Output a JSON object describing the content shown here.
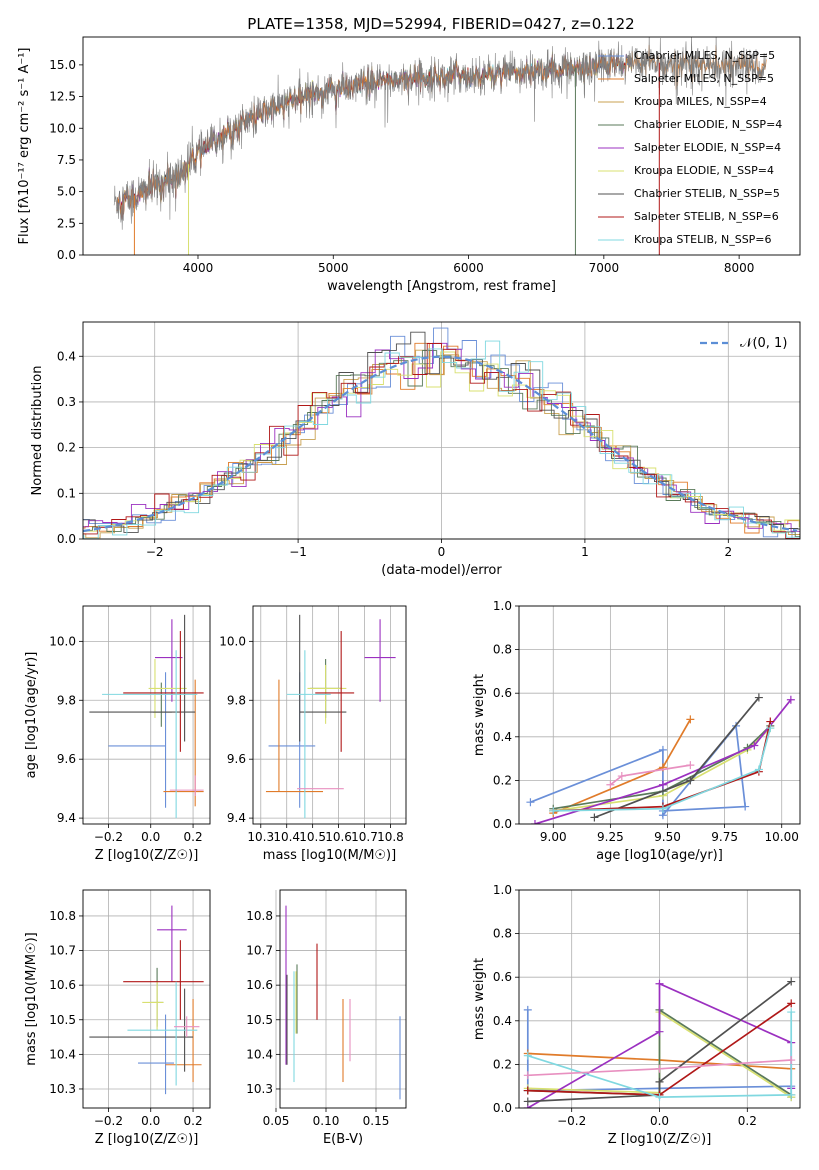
{
  "page_title": "PLATE=1358, MJD=52994, FIBERID=0427, z=0.122",
  "model_colors": [
    "#6a8fd8",
    "#e07b2a",
    "#c8a050",
    "#5a7a5a",
    "#9b30c0",
    "#d8e070",
    "#505050",
    "#b01818",
    "#80d8e0"
  ],
  "chart_data": [
    {
      "id": "spectrum",
      "type": "line",
      "xlabel": "wavelength [Angstrom, rest frame]",
      "ylabel": "Flux [fλ10⁻¹⁷ erg cm⁻² s⁻¹ A⁻¹]",
      "xlim": [
        3150,
        8450
      ],
      "ylim": [
        0,
        17.2
      ],
      "xticks": [
        4000,
        5000,
        6000,
        7000,
        8000
      ],
      "yticks": [
        0.0,
        2.5,
        5.0,
        7.5,
        10.0,
        12.5,
        15.0
      ],
      "ytick_labels": [
        "0.0",
        "2.5",
        "5.0",
        "7.5",
        "10.0",
        "12.5",
        "15.0"
      ],
      "grid": false,
      "legend_position": "right",
      "legend": [
        "Chabrier MILES, N_SSP=5",
        "Salpeter MILES, N_SSP=5",
        "Kroupa MILES, N_SSP=4",
        "Chabrier ELODIE, N_SSP=4",
        "Salpeter ELODIE, N_SSP=4",
        "Kroupa ELODIE, N_SSP=4",
        "Chabrier STELIB, N_SSP=5",
        "Salpeter STELIB, N_SSP=6",
        "Kroupa STELIB, N_SSP=6"
      ],
      "legend_colors": [
        "#6a8fd8",
        "#e07b2a",
        "#c8a050",
        "#5a7a5a",
        "#9b30c0",
        "#d8e070",
        "#505050",
        "#b01818",
        "#80d8e0"
      ],
      "continuum_x": [
        3380,
        3500,
        3700,
        3850,
        4000,
        4200,
        4400,
        4600,
        4800,
        5000,
        5200,
        5500,
        5800,
        6000,
        6300,
        6600,
        6900,
        7200,
        7500,
        7800,
        8000,
        8200
      ],
      "continuum_y": [
        4.2,
        4.5,
        5.5,
        6.2,
        8.0,
        9.6,
        10.8,
        11.8,
        12.6,
        13.1,
        13.4,
        13.9,
        14.1,
        14.2,
        14.4,
        14.6,
        14.9,
        15.1,
        15.2,
        15.0,
        14.9,
        14.8
      ],
      "fit_range": [
        3400,
        7200
      ]
    },
    {
      "id": "residuals",
      "type": "line",
      "xlabel": "(data-model)/error",
      "ylabel": "Normed distribution",
      "xlim": [
        -2.5,
        2.5
      ],
      "ylim": [
        0,
        0.475
      ],
      "xticks": [
        -2,
        -1,
        0,
        1,
        2
      ],
      "xtick_labels": [
        "−2",
        "−1",
        "0",
        "1",
        "2"
      ],
      "yticks": [
        0.0,
        0.1,
        0.2,
        0.3,
        0.4
      ],
      "ytick_labels": [
        "0.0",
        "0.1",
        "0.2",
        "0.3",
        "0.4"
      ],
      "grid": true,
      "legend": [
        "𝒩(0, 1)"
      ],
      "legend_position": "top-right",
      "gaussian": {
        "mean": 0,
        "sigma": 1
      }
    },
    {
      "id": "age-vs-Z",
      "type": "scatter",
      "xlabel": "Z [log10(Z/Z☉)]",
      "ylabel": "age  [log10(age/yr)]",
      "xlim": [
        -0.32,
        0.28
      ],
      "ylim": [
        9.38,
        10.12
      ],
      "xticks": [
        -0.2,
        0.0,
        0.2
      ],
      "xtick_labels": [
        "−0.2",
        "0.0",
        "0.2"
      ],
      "yticks": [
        9.4,
        9.6,
        9.8,
        10.0
      ],
      "ytick_labels": [
        "9.4",
        "9.6",
        "9.8",
        "10.0"
      ],
      "grid": true,
      "points": [
        {
          "x": 0.07,
          "y": 9.645,
          "xerr": [
            0.27,
            0.0
          ],
          "yerr": [
            0.21,
            0.25
          ],
          "c": 0
        },
        {
          "x": 0.21,
          "y": 9.49,
          "xerr": [
            0.15,
            0.04
          ],
          "yerr": [
            0.05,
            0.38
          ],
          "c": 1
        },
        {
          "x": 0.05,
          "y": 9.76,
          "xerr": [
            0.04,
            0.05
          ],
          "yerr": [
            0.05,
            0.1
          ],
          "c": 3
        },
        {
          "x": 0.1,
          "y": 9.945,
          "xerr": [
            0.08,
            0.05
          ],
          "yerr": [
            0.15,
            0.13
          ],
          "c": 4
        },
        {
          "x": 0.02,
          "y": 9.84,
          "xerr": [
            0.03,
            0.15
          ],
          "yerr": [
            0.1,
            0.1
          ],
          "c": 5
        },
        {
          "x": 0.16,
          "y": 9.76,
          "xerr": [
            0.45,
            0.05
          ],
          "yerr": [
            0.1,
            0.33
          ],
          "c": 6
        },
        {
          "x": 0.14,
          "y": 9.825,
          "xerr": [
            0.27,
            0.11
          ],
          "yerr": [
            0.2,
            0.21
          ],
          "c": 7
        },
        {
          "x": 0.12,
          "y": 9.82,
          "xerr": [
            0.35,
            0.1
          ],
          "yerr": [
            0.42,
            0.15
          ],
          "c": 8
        },
        {
          "x": 0.21,
          "y": 9.495,
          "xerr": [
            0.12,
            0.04
          ],
          "yerr": [
            0.02,
            0.05
          ],
          "c": 2
        }
      ]
    },
    {
      "id": "age-vs-mass",
      "type": "scatter",
      "xlabel": "mass [log10(M/M☉)]",
      "ylabel": "",
      "xlim": [
        10.27,
        10.86
      ],
      "ylim": [
        9.38,
        10.12
      ],
      "xticks": [
        10.3,
        10.4,
        10.5,
        10.6,
        10.7,
        10.8
      ],
      "xtick_labels": [
        "10.3",
        "10.4",
        "10.5",
        "10.6",
        "10.7",
        "10.8"
      ],
      "yticks": [
        9.4,
        9.6,
        9.8,
        10.0
      ],
      "ytick_labels": [
        "9.4",
        "9.6",
        "9.8",
        "10.0"
      ],
      "grid": true,
      "points": [
        {
          "x": 10.45,
          "y": 9.645,
          "xerr": [
            0.12,
            0.06
          ],
          "yerr": [
            0.21,
            0.25
          ],
          "c": 0
        },
        {
          "x": 10.37,
          "y": 9.49,
          "xerr": [
            0.05,
            0.17
          ],
          "yerr": [
            0.0,
            0.38
          ],
          "c": 1
        },
        {
          "x": 10.55,
          "y": 9.84,
          "xerr": [
            0.06,
            0.06
          ],
          "yerr": [
            0.1,
            0.1
          ],
          "c": 3
        },
        {
          "x": 10.76,
          "y": 9.945,
          "xerr": [
            0.06,
            0.06
          ],
          "yerr": [
            0.15,
            0.13
          ],
          "c": 4
        },
        {
          "x": 10.55,
          "y": 9.84,
          "xerr": [
            0.07,
            0.08
          ],
          "yerr": [
            0.12,
            0.08
          ],
          "c": 5
        },
        {
          "x": 10.45,
          "y": 9.76,
          "xerr": [
            0.0,
            0.18
          ],
          "yerr": [
            0.1,
            0.33
          ],
          "c": 6
        },
        {
          "x": 10.61,
          "y": 9.825,
          "xerr": [
            0.1,
            0.05
          ],
          "yerr": [
            0.2,
            0.21
          ],
          "c": 7
        },
        {
          "x": 10.47,
          "y": 9.82,
          "xerr": [
            0.07,
            0.1
          ],
          "yerr": [
            0.42,
            0.15
          ],
          "c": 8
        },
        {
          "x": 10.48,
          "y": 9.5,
          "xerr": [
            0.04,
            0.14
          ],
          "yerr": [
            0.0,
            0.0
          ],
          "c": 2
        }
      ]
    },
    {
      "id": "massweight-vs-age",
      "type": "line",
      "xlabel": "age  [log10(age/yr)]",
      "ylabel": "mass weight",
      "xlim": [
        8.85,
        10.08
      ],
      "ylim": [
        0,
        1
      ],
      "xticks": [
        9.0,
        9.25,
        9.5,
        9.75,
        10.0
      ],
      "xtick_labels": [
        "9.00",
        "9.25",
        "9.50",
        "9.75",
        "10.00"
      ],
      "yticks": [
        0.0,
        0.2,
        0.4,
        0.6,
        0.8,
        1.0
      ],
      "ytick_labels": [
        "0.0",
        "0.2",
        "0.4",
        "0.6",
        "0.8",
        "1.0"
      ],
      "grid": true,
      "series": [
        {
          "c": 0,
          "x": [
            8.9,
            9.48,
            9.48,
            9.8,
            9.84,
            9.48
          ],
          "y": [
            0.1,
            0.34,
            0.04,
            0.45,
            0.08,
            0.06
          ]
        },
        {
          "c": 1,
          "x": [
            9.0,
            9.48,
            9.6
          ],
          "y": [
            0.05,
            0.26,
            0.48
          ]
        },
        {
          "c": 5,
          "x": [
            9.0,
            9.48,
            9.85,
            9.95
          ],
          "y": [
            0.06,
            0.13,
            0.34,
            0.44
          ]
        },
        {
          "c": 3,
          "x": [
            9.0,
            9.48,
            9.85,
            9.95
          ],
          "y": [
            0.07,
            0.15,
            0.35,
            0.45
          ]
        },
        {
          "c": 4,
          "x": [
            8.92,
            9.48,
            9.88,
            10.04
          ],
          "y": [
            0.0,
            0.18,
            0.36,
            0.57
          ]
        },
        {
          "c": 6,
          "x": [
            9.18,
            9.6,
            9.9
          ],
          "y": [
            0.03,
            0.2,
            0.58
          ]
        },
        {
          "c": 7,
          "x": [
            9.0,
            9.48,
            9.9,
            9.95
          ],
          "y": [
            0.06,
            0.08,
            0.24,
            0.47
          ]
        },
        {
          "c": 8,
          "x": [
            9.0,
            9.48,
            9.9,
            9.95
          ],
          "y": [
            0.06,
            0.07,
            0.25,
            0.44
          ]
        },
        {
          "c": 2,
          "x": [
            9.2,
            9.3,
            9.6
          ],
          "y": [
            0.18,
            0.07,
            0.27
          ]
        }
      ],
      "pink_series": {
        "x": [
          9.25,
          9.3,
          9.6
        ],
        "y": [
          0.18,
          0.22,
          0.27
        ]
      }
    },
    {
      "id": "mass-vs-Z",
      "type": "scatter",
      "xlabel": "Z [log10(Z/Z☉)]",
      "ylabel": "mass [log10(M/M☉)]",
      "xlim": [
        -0.32,
        0.28
      ],
      "ylim": [
        10.245,
        10.875
      ],
      "xticks": [
        -0.2,
        0.0,
        0.2
      ],
      "xtick_labels": [
        "−0.2",
        "0.0",
        "0.2"
      ],
      "yticks": [
        10.3,
        10.4,
        10.5,
        10.6,
        10.7,
        10.8
      ],
      "ytick_labels": [
        "10.3",
        "10.4",
        "10.5",
        "10.6",
        "10.7",
        "10.8"
      ],
      "grid": true,
      "points": [
        {
          "x": 0.07,
          "y": 10.375,
          "xerr": [
            0.13,
            0.04
          ],
          "yerr": [
            0.09,
            0.14
          ],
          "c": 0
        },
        {
          "x": 0.2,
          "y": 10.37,
          "xerr": [
            0.13,
            0.04
          ],
          "yerr": [
            0.05,
            0.19
          ],
          "c": 1
        },
        {
          "x": 0.03,
          "y": 10.55,
          "xerr": [
            0.03,
            0.03
          ],
          "yerr": [
            0.07,
            0.1
          ],
          "c": 3
        },
        {
          "x": 0.1,
          "y": 10.76,
          "xerr": [
            0.07,
            0.07
          ],
          "yerr": [
            0.15,
            0.07
          ],
          "c": 4
        },
        {
          "x": 0.03,
          "y": 10.55,
          "xerr": [
            0.07,
            0.03
          ],
          "yerr": [
            0.08,
            0.06
          ],
          "c": 5
        },
        {
          "x": 0.16,
          "y": 10.45,
          "xerr": [
            0.45,
            0.04
          ],
          "yerr": [
            0.1,
            0.14
          ],
          "c": 6
        },
        {
          "x": 0.14,
          "y": 10.61,
          "xerr": [
            0.27,
            0.11
          ],
          "yerr": [
            0.11,
            0.12
          ],
          "c": 7
        },
        {
          "x": 0.12,
          "y": 10.47,
          "xerr": [
            0.23,
            0.1
          ],
          "yerr": [
            0.16,
            0.14
          ],
          "c": 8
        },
        {
          "x": 0.17,
          "y": 10.48,
          "xerr": [
            0.06,
            0.06
          ],
          "yerr": [
            0.03,
            0.03
          ],
          "c": 2
        }
      ]
    },
    {
      "id": "mass-vs-ebv",
      "type": "scatter",
      "xlabel": "E(B-V)",
      "ylabel": "",
      "xlim": [
        0.054,
        0.18
      ],
      "ylim": [
        10.245,
        10.875
      ],
      "xticks": [
        0.05,
        0.1,
        0.15
      ],
      "xtick_labels": [
        "0.05",
        "0.10",
        "0.15"
      ],
      "yticks": [
        10.3,
        10.4,
        10.5,
        10.6,
        10.7,
        10.8
      ],
      "ytick_labels": [
        "10.3",
        "10.4",
        "10.5",
        "10.6",
        "10.7",
        "10.8"
      ],
      "grid": true,
      "points": [
        {
          "x": 0.174,
          "y": 10.39,
          "xerr": [
            0,
            0
          ],
          "yerr": [
            0.12,
            0.12
          ],
          "c": 0
        },
        {
          "x": 0.117,
          "y": 10.44,
          "xerr": [
            0,
            0
          ],
          "yerr": [
            0.12,
            0.12
          ],
          "c": 1
        },
        {
          "x": 0.06,
          "y": 10.6,
          "xerr": [
            0,
            0
          ],
          "yerr": [
            0.23,
            0.23
          ],
          "c": 4
        },
        {
          "x": 0.071,
          "y": 10.56,
          "xerr": [
            0,
            0
          ],
          "yerr": [
            0.1,
            0.1
          ],
          "c": 3
        },
        {
          "x": 0.07,
          "y": 10.55,
          "xerr": [
            0,
            0
          ],
          "yerr": [
            0.09,
            0.09
          ],
          "c": 5
        },
        {
          "x": 0.061,
          "y": 10.5,
          "xerr": [
            0,
            0
          ],
          "yerr": [
            0.13,
            0.13
          ],
          "c": 6
        },
        {
          "x": 0.091,
          "y": 10.61,
          "xerr": [
            0,
            0
          ],
          "yerr": [
            0.11,
            0.11
          ],
          "c": 7
        },
        {
          "x": 0.068,
          "y": 10.48,
          "xerr": [
            0,
            0
          ],
          "yerr": [
            0.16,
            0.16
          ],
          "c": 8
        },
        {
          "x": 0.124,
          "y": 10.47,
          "xerr": [
            0,
            0
          ],
          "yerr": [
            0.09,
            0.09
          ],
          "c": 2
        }
      ]
    },
    {
      "id": "massweight-vs-Z",
      "type": "line",
      "xlabel": "Z [log10(Z/Z☉)]",
      "ylabel": "mass weight",
      "xlim": [
        -0.32,
        0.32
      ],
      "ylim": [
        0,
        1
      ],
      "xticks": [
        -0.2,
        0.0,
        0.2
      ],
      "xtick_labels": [
        "−0.2",
        "0.0",
        "0.2"
      ],
      "yticks": [
        0.0,
        0.2,
        0.4,
        0.6,
        0.8,
        1.0
      ],
      "ytick_labels": [
        "0.0",
        "0.2",
        "0.4",
        "0.6",
        "0.8",
        "1.0"
      ],
      "grid": true,
      "series": [
        {
          "c": 0,
          "x": [
            -0.3,
            -0.3,
            0.0,
            0.3,
            0.3
          ],
          "y": [
            0.45,
            0.08,
            0.09,
            0.1,
            0.05
          ]
        },
        {
          "c": 1,
          "x": [
            -0.3,
            0.0,
            0.3
          ],
          "y": [
            0.25,
            0.22,
            0.18
          ]
        },
        {
          "c": 5,
          "x": [
            -0.3,
            0.0,
            0.0,
            0.3
          ],
          "y": [
            0.09,
            0.07,
            0.44,
            0.05
          ]
        },
        {
          "c": 3,
          "x": [
            -0.3,
            0.0,
            0.0,
            0.3
          ],
          "y": [
            0.08,
            0.06,
            0.45,
            0.06
          ]
        },
        {
          "c": 4,
          "x": [
            -0.3,
            0.0,
            0.0,
            0.3,
            0.3
          ],
          "y": [
            0.0,
            0.35,
            0.57,
            0.3,
            0.09
          ]
        },
        {
          "c": 6,
          "x": [
            -0.3,
            0.0,
            0.0,
            0.3
          ],
          "y": [
            0.03,
            0.06,
            0.12,
            0.58
          ]
        },
        {
          "c": 7,
          "x": [
            -0.3,
            0.0,
            0.3
          ],
          "y": [
            0.08,
            0.06,
            0.48
          ]
        },
        {
          "c": 8,
          "x": [
            -0.3,
            0.0,
            0.3,
            0.3
          ],
          "y": [
            0.24,
            0.05,
            0.06,
            0.44
          ]
        },
        {
          "c": 2,
          "x": [
            -0.3,
            0.0,
            0.3
          ],
          "y": [
            0.27,
            0.18,
            0.2
          ]
        }
      ],
      "pink_series": {
        "x": [
          -0.3,
          0.0,
          0.3
        ],
        "y": [
          0.15,
          0.18,
          0.22
        ]
      }
    }
  ]
}
